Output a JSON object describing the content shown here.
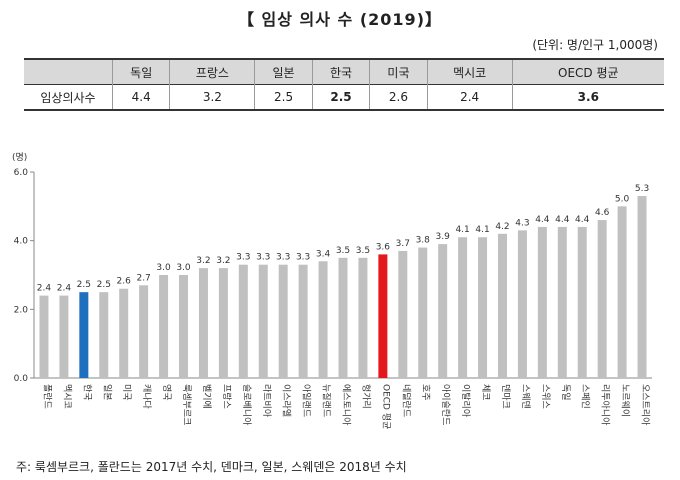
{
  "title": "【 임상 의사 수 (2019)】",
  "unit_note": "(단위: 명/인구 1,000명)",
  "summary_table": {
    "headers": [
      "",
      "독일",
      "프랑스",
      "일본",
      "한국",
      "미국",
      "멕시코",
      "OECD 평균"
    ],
    "row_label": "임상의사수",
    "values": [
      "4.4",
      "3.2",
      "2.5",
      "2.5",
      "2.6",
      "2.4",
      "3.6"
    ]
  },
  "chart_data": {
    "type": "bar",
    "y_unit_label": "(명)",
    "ylim": [
      0,
      6
    ],
    "yticks": [
      "0.0",
      "2.0",
      "4.0",
      "6.0"
    ],
    "grid": false,
    "categories": [
      "폴란드",
      "멕시코",
      "한국",
      "일본",
      "미국",
      "캐나다",
      "영국",
      "룩셈부르크",
      "벨기에",
      "프랑스",
      "슬로베니아",
      "라트비아",
      "이스라엘",
      "아일랜드",
      "뉴질랜드",
      "에스토니아",
      "헝가리",
      "OECD 평균",
      "네덜란드",
      "호주",
      "아이슬란드",
      "이탈리아",
      "체코",
      "덴마크",
      "스웨덴",
      "스위스",
      "독일",
      "스페인",
      "리투아니아",
      "노르웨이",
      "오스트리아"
    ],
    "values": [
      2.4,
      2.4,
      2.5,
      2.5,
      2.6,
      2.7,
      3.0,
      3.0,
      3.2,
      3.2,
      3.3,
      3.3,
      3.3,
      3.3,
      3.4,
      3.5,
      3.5,
      3.6,
      3.7,
      3.8,
      3.9,
      4.1,
      4.1,
      4.2,
      4.3,
      4.4,
      4.4,
      4.4,
      4.6,
      5.0,
      5.3
    ],
    "labels": [
      "2.4",
      "2.4",
      "2.5",
      "2.5",
      "2.6",
      "2.7",
      "3.0",
      "3.0",
      "3.2",
      "3.2",
      "3.3",
      "3.3",
      "3.3",
      "3.3",
      "3.4",
      "3.5",
      "3.5",
      "3.6",
      "3.7",
      "3.8",
      "3.9",
      "4.1",
      "4.1",
      "4.2",
      "4.3",
      "4.4",
      "4.4",
      "4.4",
      "4.6",
      "5.0",
      "5.3"
    ],
    "colors": {
      "default": "#c0c0c0",
      "korea": "#1f6fbf",
      "oecd": "#e3191b"
    },
    "highlight": {
      "한국": "korea",
      "OECD 평균": "oecd"
    }
  },
  "footnote": "주: 룩셈부르크, 폴란드는 2017년 수치, 덴마크, 일본, 스웨덴은 2018년 수치"
}
